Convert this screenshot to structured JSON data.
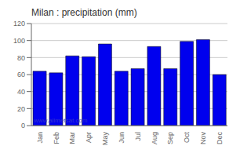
{
  "chart_data": {
    "type": "bar",
    "title": "Milan : precipitation (mm)",
    "categories": [
      "Jan",
      "Feb",
      "Mar",
      "Apr",
      "May",
      "Jun",
      "Jul",
      "Aug",
      "Sep",
      "Oct",
      "Nov",
      "Dec"
    ],
    "values": [
      64,
      62,
      82,
      81,
      96,
      64,
      67,
      93,
      67,
      99,
      101,
      60
    ],
    "color": "#0000ee",
    "ylim": [
      0,
      120
    ],
    "yticks": [
      0,
      20,
      40,
      60,
      80,
      100,
      120
    ],
    "grid": true,
    "annotations": [
      "www.allmetsat.com"
    ]
  }
}
